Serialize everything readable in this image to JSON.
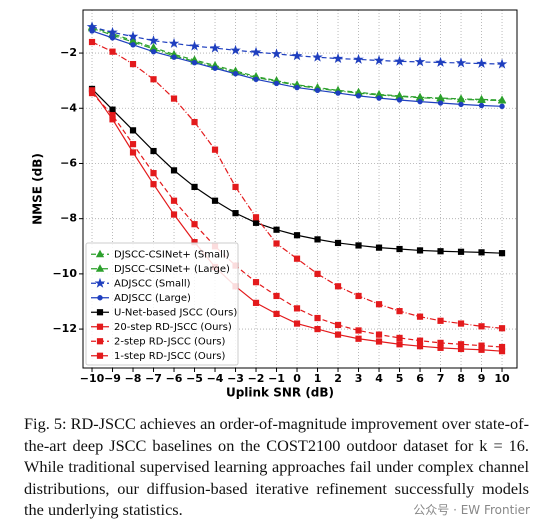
{
  "chart_data": {
    "type": "line",
    "xlabel": "Uplink SNR (dB)",
    "ylabel": "NMSE (dB)",
    "x": [
      -10,
      -9,
      -8,
      -7,
      -6,
      -5,
      -4,
      -3,
      -2,
      -1,
      0,
      1,
      2,
      3,
      4,
      5,
      6,
      7,
      8,
      9,
      10
    ],
    "xlim": [
      -10.44,
      10.73
    ],
    "ylim": [
      -13.41,
      -0.44
    ],
    "xticks": [
      {
        "value": -10,
        "label": "−10"
      },
      {
        "value": -9,
        "label": "−9"
      },
      {
        "value": -8,
        "label": "−8"
      },
      {
        "value": -7,
        "label": "−7"
      },
      {
        "value": -6,
        "label": "−6"
      },
      {
        "value": -5,
        "label": "−5"
      },
      {
        "value": -4,
        "label": "−4"
      },
      {
        "value": -3,
        "label": "−3"
      },
      {
        "value": -2,
        "label": "−2"
      },
      {
        "value": -1,
        "label": "−1"
      },
      0,
      1,
      2,
      3,
      4,
      5,
      6,
      7,
      8,
      9,
      10
    ],
    "yticks": [
      {
        "value": -12,
        "label": "−12"
      },
      {
        "value": -10,
        "label": "−10"
      },
      {
        "value": -8,
        "label": "−8"
      },
      {
        "value": -6,
        "label": "−6"
      },
      {
        "value": -4,
        "label": "−4"
      },
      {
        "value": -2,
        "label": "−2"
      }
    ],
    "grid": true,
    "legend": "lower left",
    "series": [
      {
        "name": "DJSCC-CSINet+ (Small)",
        "color": "#2ca02c",
        "dash": "5,3",
        "marker": "triangle",
        "values": [
          -1.05,
          -1.3,
          -1.55,
          -1.8,
          -2.05,
          -2.25,
          -2.45,
          -2.65,
          -2.85,
          -3.0,
          -3.15,
          -3.25,
          -3.35,
          -3.42,
          -3.5,
          -3.55,
          -3.6,
          -3.63,
          -3.66,
          -3.68,
          -3.7
        ]
      },
      {
        "name": "DJSCC-CSINet+ (Large)",
        "color": "#2ca02c",
        "dash": "6,2,1,2",
        "marker": "triangle",
        "values": [
          -1.1,
          -1.35,
          -1.6,
          -1.85,
          -2.1,
          -2.3,
          -2.5,
          -2.7,
          -2.88,
          -3.03,
          -3.17,
          -3.28,
          -3.37,
          -3.45,
          -3.52,
          -3.57,
          -3.62,
          -3.65,
          -3.68,
          -3.7,
          -3.72
        ]
      },
      {
        "name": "ADJSCC (Small)",
        "color": "#1f3fbf",
        "dash": "5,3",
        "marker": "star",
        "values": [
          -1.05,
          -1.25,
          -1.4,
          -1.55,
          -1.65,
          -1.75,
          -1.82,
          -1.9,
          -1.97,
          -2.03,
          -2.1,
          -2.15,
          -2.2,
          -2.23,
          -2.27,
          -2.3,
          -2.32,
          -2.34,
          -2.36,
          -2.38,
          -2.4
        ]
      },
      {
        "name": "ADJSCC (Large)",
        "color": "#1f3fbf",
        "dash": "",
        "marker": "dot",
        "values": [
          -1.2,
          -1.45,
          -1.7,
          -1.95,
          -2.15,
          -2.35,
          -2.55,
          -2.75,
          -2.95,
          -3.1,
          -3.25,
          -3.35,
          -3.45,
          -3.55,
          -3.63,
          -3.7,
          -3.76,
          -3.81,
          -3.86,
          -3.9,
          -3.93
        ]
      },
      {
        "name": "U-Net-based JSCC (Ours)",
        "color": "#000000",
        "dash": "",
        "marker": "square",
        "values": [
          -3.3,
          -4.05,
          -4.8,
          -5.55,
          -6.25,
          -6.85,
          -7.35,
          -7.8,
          -8.15,
          -8.4,
          -8.6,
          -8.75,
          -8.88,
          -8.97,
          -9.05,
          -9.1,
          -9.15,
          -9.18,
          -9.2,
          -9.22,
          -9.25
        ]
      },
      {
        "name": "20-step RD-JSCC (Ours)",
        "color": "#e31a1c",
        "dash": "",
        "marker": "square",
        "values": [
          -3.35,
          -4.4,
          -5.6,
          -6.75,
          -7.85,
          -8.85,
          -9.75,
          -10.45,
          -11.05,
          -11.45,
          -11.8,
          -12.0,
          -12.2,
          -12.35,
          -12.45,
          -12.55,
          -12.62,
          -12.68,
          -12.72,
          -12.75,
          -12.8
        ]
      },
      {
        "name": "2-step RD-JSCC (Ours)",
        "color": "#e31a1c",
        "dash": "5,3",
        "marker": "square",
        "values": [
          -3.45,
          -4.25,
          -5.3,
          -6.35,
          -7.35,
          -8.2,
          -9.0,
          -9.7,
          -10.3,
          -10.8,
          -11.25,
          -11.6,
          -11.85,
          -12.05,
          -12.2,
          -12.32,
          -12.42,
          -12.5,
          -12.55,
          -12.6,
          -12.65
        ]
      },
      {
        "name": "1-step RD-JSCC (Ours)",
        "color": "#e31a1c",
        "dash": "6,2,1,2",
        "marker": "square",
        "values": [
          -1.6,
          -1.95,
          -2.4,
          -2.95,
          -3.65,
          -4.5,
          -5.5,
          -6.85,
          -7.95,
          -8.9,
          -9.45,
          -10.0,
          -10.45,
          -10.8,
          -11.1,
          -11.35,
          -11.55,
          -11.7,
          -11.8,
          -11.9,
          -11.97
        ]
      }
    ]
  },
  "caption": "Fig. 5: RD-JSCC achieves an order-of-magnitude improvement over state-of-the-art deep JSCC baselines on the COST2100 outdoor dataset for k = 16. While traditional supervised learning approaches fail under complex channel distributions, our diffusion-based iterative refinement successfully models the underlying statistics.",
  "watermark": "公众号 · EW Frontier"
}
